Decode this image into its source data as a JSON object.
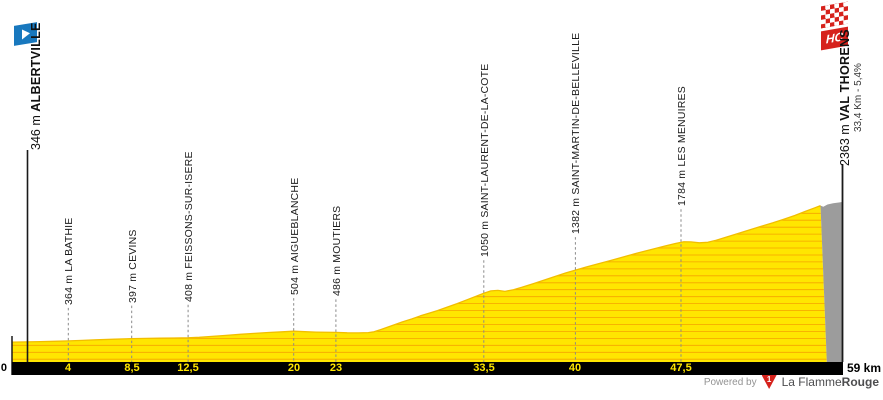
{
  "page": {
    "background": "#ffffff"
  },
  "footer": {
    "powered_by": "Powered by",
    "brand_regular": "La Flamme",
    "brand_bold": "Rouge",
    "logo_glyph": "1"
  },
  "chart_data": {
    "type": "area",
    "title": "Stage elevation profile Albertville - Val Thorens",
    "x_unit": "km",
    "y_unit": "m",
    "x_range": [
      0,
      59
    ],
    "grid": true,
    "elev_gridline_step": 100,
    "label_gap": 36,
    "start": {
      "km": 0,
      "elev": 346,
      "elev_label": "346 m",
      "name": "ALBERTVILLE",
      "tick_label": "0"
    },
    "finish": {
      "km": 59,
      "elev": 2363,
      "elev_label": "2363 m",
      "name": "VAL THORENS",
      "climb_label": "33,4 Km - 5,4%",
      "tick_label": "59 km",
      "category": "HC"
    },
    "waypoints": [
      {
        "km": 4,
        "elev": 364,
        "label": "364 m LA BATHIE",
        "tick_label": "4"
      },
      {
        "km": 8.5,
        "elev": 397,
        "label": "397 m CEVINS",
        "tick_label": "8,5"
      },
      {
        "km": 12.5,
        "elev": 408,
        "label": "408 m FEISSONS-SUR-ISERE",
        "tick_label": "12,5"
      },
      {
        "km": 20,
        "elev": 504,
        "label": "504 m AIGUEBLANCHE",
        "tick_label": "20"
      },
      {
        "km": 23,
        "elev": 486,
        "label": "486 m MOUTIERS",
        "tick_label": "23"
      },
      {
        "km": 33.5,
        "elev": 1050,
        "label": "1050 m SAINT-LAURENT-DE-LA-COTE",
        "tick_label": "33,5"
      },
      {
        "km": 40,
        "elev": 1382,
        "label": "1382 m SAINT-MARTIN-DE-BELLEVILLE",
        "tick_label": "40"
      },
      {
        "km": 47.5,
        "elev": 1784,
        "label": "1784 m LES MENUIRES",
        "tick_label": "47,5"
      }
    ],
    "profile": [
      [
        0,
        346
      ],
      [
        1,
        349
      ],
      [
        2,
        353
      ],
      [
        3,
        358
      ],
      [
        4,
        364
      ],
      [
        5,
        371
      ],
      [
        6,
        379
      ],
      [
        7.3,
        388
      ],
      [
        8.5,
        397
      ],
      [
        9.5,
        400
      ],
      [
        10.5,
        403
      ],
      [
        11.5,
        405
      ],
      [
        12.5,
        408
      ],
      [
        13.3,
        416
      ],
      [
        14.2,
        428
      ],
      [
        15.2,
        443
      ],
      [
        16.2,
        458
      ],
      [
        17.2,
        472
      ],
      [
        18.2,
        484
      ],
      [
        19.2,
        495
      ],
      [
        20,
        504
      ],
      [
        20.8,
        496
      ],
      [
        21.6,
        490
      ],
      [
        23,
        486
      ],
      [
        23.8,
        480
      ],
      [
        24.6,
        478
      ],
      [
        25.3,
        483
      ],
      [
        25.7,
        495
      ],
      [
        26.3,
        535
      ],
      [
        27,
        585
      ],
      [
        27.7,
        635
      ],
      [
        28.4,
        680
      ],
      [
        29,
        725
      ],
      [
        29.6,
        762
      ],
      [
        30.2,
        800
      ],
      [
        30.9,
        850
      ],
      [
        31.6,
        900
      ],
      [
        32.3,
        955
      ],
      [
        33,
        1010
      ],
      [
        33.5,
        1050
      ],
      [
        34,
        1083
      ],
      [
        34.5,
        1090
      ],
      [
        35,
        1076
      ],
      [
        35.6,
        1100
      ],
      [
        36.2,
        1135
      ],
      [
        37,
        1185
      ],
      [
        37.8,
        1240
      ],
      [
        38.6,
        1295
      ],
      [
        39.3,
        1340
      ],
      [
        40,
        1382
      ],
      [
        40.8,
        1428
      ],
      [
        41.6,
        1472
      ],
      [
        42.4,
        1515
      ],
      [
        43.2,
        1560
      ],
      [
        44,
        1605
      ],
      [
        44.8,
        1648
      ],
      [
        45.6,
        1690
      ],
      [
        46.4,
        1730
      ],
      [
        47.1,
        1765
      ],
      [
        47.7,
        1790
      ],
      [
        48.2,
        1788
      ],
      [
        48.8,
        1775
      ],
      [
        49.4,
        1782
      ],
      [
        50,
        1812
      ],
      [
        50.8,
        1862
      ],
      [
        51.6,
        1912
      ],
      [
        52.4,
        1962
      ],
      [
        53.2,
        2012
      ],
      [
        54,
        2062
      ],
      [
        54.8,
        2115
      ],
      [
        55.6,
        2170
      ],
      [
        56.3,
        2225
      ],
      [
        57,
        2278
      ],
      [
        57.4,
        2310
      ]
    ],
    "final_gray_section": {
      "start_km": 57.4,
      "profile": [
        [
          57.4,
          2310
        ],
        [
          57.6,
          2295
        ],
        [
          57.9,
          2326
        ],
        [
          58.3,
          2345
        ],
        [
          58.7,
          2355
        ],
        [
          59,
          2363
        ]
      ]
    },
    "colors": {
      "profile_fill": "#FFE600",
      "profile_edge": "#F2BE00",
      "grid_line": "#F49B00",
      "final_fill": "#9C9C9C",
      "axis_bar": "#000000",
      "tick_text": "#FFE600",
      "marker_line": "#1a1a1a",
      "dashed_line": "#8a8a8a",
      "start_flag_blue": "#1878BE",
      "category_red": "#D6221C"
    }
  }
}
